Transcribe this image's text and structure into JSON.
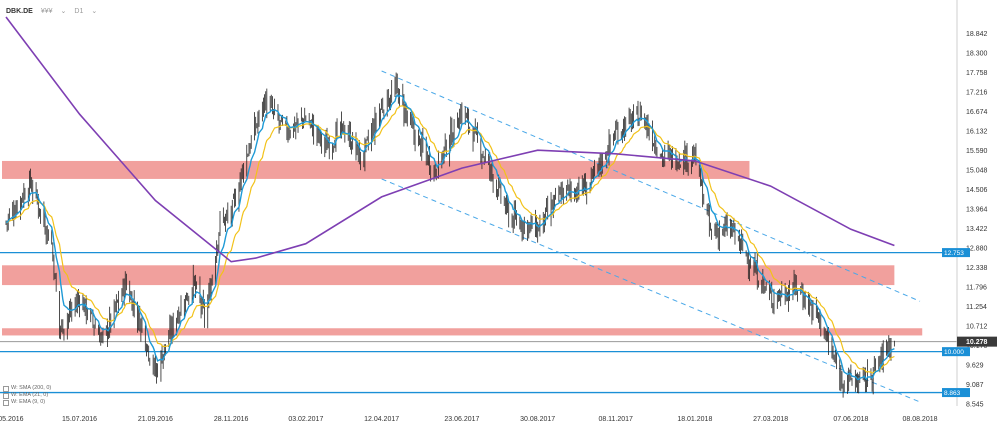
{
  "header": {
    "symbol": "DBK.DE",
    "chart_type": "¥¥¥",
    "timeframe": "D1"
  },
  "indicators": [
    {
      "label": "W: SMA (200, 0)",
      "color": "#7e3fb3"
    },
    {
      "label": "W: EMA (21, 0)",
      "color": "#f2c21a"
    },
    {
      "label": "W: EMA (9, 0)",
      "color": "#1e9ad6"
    }
  ],
  "colors": {
    "candle": "#222222",
    "zone": "#ef8f8c",
    "hline": "#1a8fd6",
    "trend": "#4aa8e8",
    "sma200": "#7e3fb3",
    "ema21": "#f2c21a",
    "ema9": "#1e9ad6",
    "price_tag": "#3a3a3a",
    "axis_tag": "#1a8fd6"
  },
  "chart_data": {
    "type": "candlestick",
    "title": "",
    "xlabel": "",
    "ylabel": "",
    "x_range": [
      "10.05.2016",
      "08.08.2018"
    ],
    "ylim": [
      8.545,
      19.384
    ],
    "x_ticks": [
      "10.05.2016",
      "15.07.2016",
      "21.09.2016",
      "28.11.2016",
      "03.02.2017",
      "12.04.2017",
      "23.06.2017",
      "30.08.2017",
      "08.11.2017",
      "18.01.2018",
      "27.03.2018",
      "07.06.2018",
      "08.08.2018"
    ],
    "y_ticks": [
      18.842,
      18.3,
      17.758,
      17.216,
      16.674,
      16.132,
      15.59,
      15.048,
      14.506,
      13.964,
      13.422,
      12.88,
      12.338,
      11.796,
      11.254,
      10.712,
      10.17,
      9.629,
      9.087,
      8.545
    ],
    "y_tick_labels": [
      "18.842",
      "18.300",
      "17.758",
      "17.216",
      "16.674",
      "16.132",
      "15.590",
      "15.048",
      "14.506",
      "13.964",
      "13.422",
      "12.880",
      "12.338",
      "11.796",
      "11.254",
      "10.712",
      "10.170",
      "9.629",
      "9.087",
      "8.545"
    ],
    "price_path": [
      [
        "10.05.2016",
        13.6
      ],
      [
        "01.06.2016",
        14.7
      ],
      [
        "20.06.2016",
        13.0
      ],
      [
        "27.06.2016",
        10.6
      ],
      [
        "15.07.2016",
        11.5
      ],
      [
        "05.08.2016",
        10.3
      ],
      [
        "25.08.2016",
        11.9
      ],
      [
        "10.09.2016",
        10.6
      ],
      [
        "21.09.2016",
        9.4
      ],
      [
        "10.10.2016",
        11.0
      ],
      [
        "25.10.2016",
        11.9
      ],
      [
        "05.11.2016",
        10.9
      ],
      [
        "18.11.2016",
        13.6
      ],
      [
        "28.11.2016",
        13.8
      ],
      [
        "10.12.2016",
        15.3
      ],
      [
        "28.12.2016",
        17.0
      ],
      [
        "15.01.2017",
        16.1
      ],
      [
        "03.02.2017",
        16.5
      ],
      [
        "20.02.2017",
        15.7
      ],
      [
        "10.03.2017",
        16.2
      ],
      [
        "25.03.2017",
        15.3
      ],
      [
        "12.04.2017",
        16.8
      ],
      [
        "25.04.2017",
        17.3
      ],
      [
        "10.05.2017",
        16.1
      ],
      [
        "30.05.2017",
        15.0
      ],
      [
        "23.06.2017",
        16.7
      ],
      [
        "15.07.2017",
        15.3
      ],
      [
        "05.08.2017",
        13.7
      ],
      [
        "30.08.2017",
        13.4
      ],
      [
        "20.09.2017",
        14.4
      ],
      [
        "15.10.2017",
        14.6
      ],
      [
        "08.11.2017",
        16.1
      ],
      [
        "01.12.2017",
        16.6
      ],
      [
        "20.12.2017",
        15.4
      ],
      [
        "18.01.2018",
        15.4
      ],
      [
        "01.02.2018",
        13.3
      ],
      [
        "20.02.2018",
        13.4
      ],
      [
        "10.03.2018",
        12.4
      ],
      [
        "27.03.2018",
        11.5
      ],
      [
        "20.04.2018",
        11.8
      ],
      [
        "10.05.2018",
        10.9
      ],
      [
        "28.05.2018",
        9.3
      ],
      [
        "07.06.2018",
        9.2
      ],
      [
        "20.06.2018",
        9.2
      ],
      [
        "01.07.2018",
        9.6
      ],
      [
        "10.07.2018",
        10.2
      ],
      [
        "16.07.2018",
        10.278
      ]
    ],
    "series": [
      {
        "name": "W: SMA (200, 0)",
        "values": [
          [
            "10.05.2016",
            19.3
          ],
          [
            "15.07.2016",
            16.6
          ],
          [
            "21.09.2016",
            14.2
          ],
          [
            "28.11.2016",
            12.5
          ],
          [
            "20.12.2016",
            12.6
          ],
          [
            "03.02.2017",
            13.0
          ],
          [
            "12.04.2017",
            14.3
          ],
          [
            "23.06.2017",
            15.1
          ],
          [
            "30.08.2017",
            15.6
          ],
          [
            "08.11.2017",
            15.5
          ],
          [
            "18.01.2018",
            15.3
          ],
          [
            "27.03.2018",
            14.6
          ],
          [
            "07.06.2018",
            13.4
          ],
          [
            "16.07.2018",
            12.95
          ]
        ]
      },
      {
        "name": "W: EMA (21, 0)",
        "values": []
      },
      {
        "name": "W: EMA (9, 0)",
        "values": []
      }
    ],
    "horizontal_levels": [
      12.753,
      10.0,
      8.863,
      10.278
    ],
    "level_labels": [
      "12.753",
      "10.000",
      "8.863",
      "10.278"
    ],
    "zones": [
      {
        "from": 14.8,
        "to": 15.3,
        "end": "08.03.2018"
      },
      {
        "from": 11.85,
        "to": 12.4,
        "end": "16.07.2018"
      },
      {
        "from": 10.45,
        "to": 10.65,
        "end": "10.08.2018"
      }
    ],
    "trend_channel": [
      {
        "from": [
          "12.04.2017",
          17.8
        ],
        "to": [
          "08.08.2018",
          11.4
        ]
      },
      {
        "from": [
          "12.04.2017",
          14.8
        ],
        "to": [
          "08.08.2018",
          8.6
        ]
      }
    ],
    "last_price": 10.278,
    "grid": false
  }
}
